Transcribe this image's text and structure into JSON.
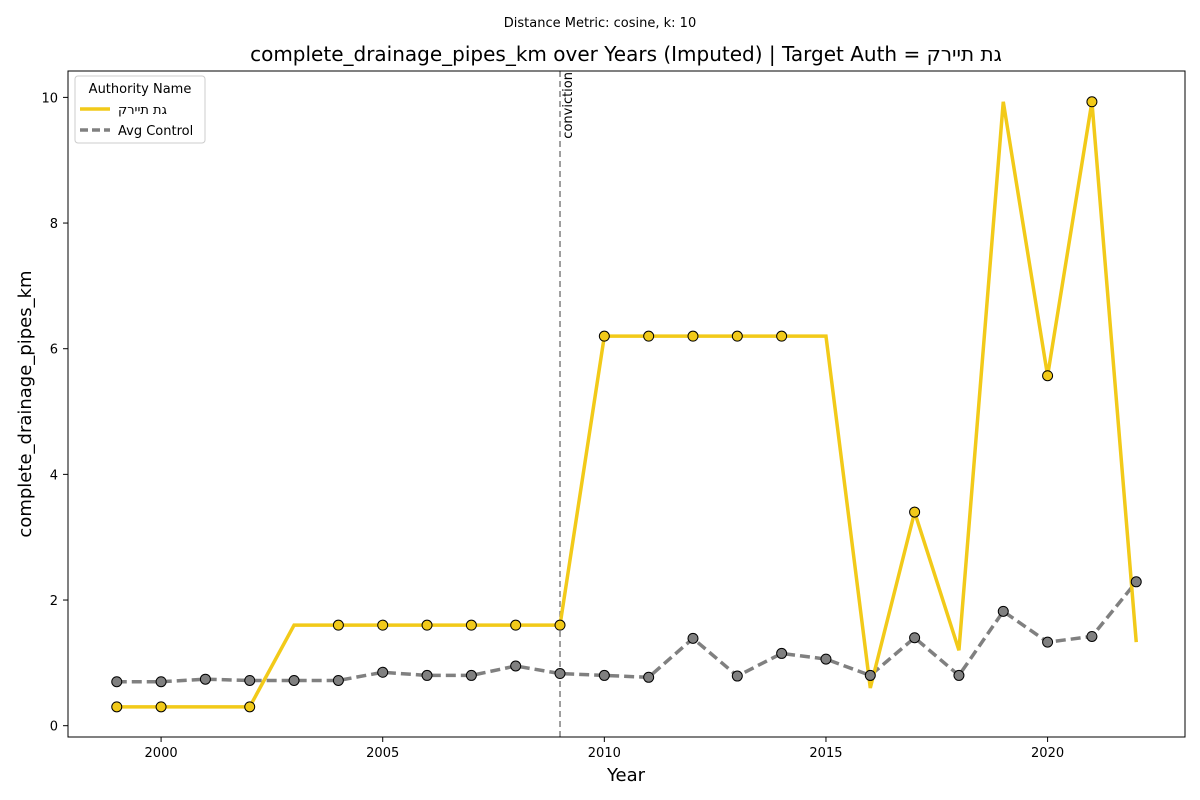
{
  "chart_data": {
    "type": "line",
    "suptitle": "Distance Metric: cosine, k: 10",
    "title": "complete_drainage_pipes_km over Years (Imputed) | Target Auth = גת תיירק",
    "xlabel": "Year",
    "ylabel": "complete_drainage_pipes_km",
    "xlim": [
      1997.9,
      2023.1
    ],
    "ylim": [
      -0.18,
      10.42
    ],
    "xticks": [
      2000,
      2005,
      2010,
      2015,
      2020
    ],
    "yticks": [
      0,
      2,
      4,
      6,
      8,
      10
    ],
    "grid": false,
    "legend": {
      "title": "Authority Name",
      "position": "upper-left"
    },
    "vline": {
      "x": 2009,
      "label": "conviction",
      "color": "#808080",
      "style": "dashed"
    },
    "series": [
      {
        "name": "גת תיירק",
        "color": "#f2ca19",
        "style": "solid",
        "x": [
          1999,
          2000,
          2001,
          2002,
          2003,
          2004,
          2005,
          2006,
          2007,
          2008,
          2009,
          2010,
          2011,
          2012,
          2013,
          2014,
          2015,
          2016,
          2017,
          2018,
          2019,
          2020,
          2021,
          2022
        ],
        "y": [
          0.3,
          0.3,
          0.3,
          0.3,
          1.6,
          1.6,
          1.6,
          1.6,
          1.6,
          1.6,
          1.6,
          6.2,
          6.2,
          6.2,
          6.2,
          6.2,
          6.2,
          0.6,
          3.4,
          1.2,
          9.93,
          5.57,
          9.93,
          1.33
        ],
        "markers_at": [
          1999,
          2000,
          2002,
          2004,
          2005,
          2006,
          2007,
          2008,
          2009,
          2010,
          2011,
          2012,
          2013,
          2014,
          2017,
          2020,
          2021
        ]
      },
      {
        "name": "Avg Control",
        "color": "#808080",
        "style": "dashed",
        "x": [
          1999,
          2000,
          2001,
          2002,
          2003,
          2004,
          2005,
          2006,
          2007,
          2008,
          2009,
          2010,
          2011,
          2012,
          2013,
          2014,
          2015,
          2016,
          2017,
          2018,
          2019,
          2020,
          2021,
          2022
        ],
        "y": [
          0.7,
          0.7,
          0.74,
          0.72,
          0.72,
          0.72,
          0.85,
          0.8,
          0.8,
          0.95,
          0.83,
          0.8,
          0.77,
          1.39,
          0.79,
          1.15,
          1.06,
          0.8,
          1.4,
          0.8,
          1.82,
          1.33,
          1.42,
          2.29
        ],
        "markers_at": [
          1999,
          2000,
          2001,
          2002,
          2003,
          2004,
          2005,
          2006,
          2007,
          2008,
          2009,
          2010,
          2011,
          2012,
          2013,
          2014,
          2015,
          2016,
          2017,
          2018,
          2019,
          2020,
          2021,
          2022
        ]
      }
    ]
  }
}
